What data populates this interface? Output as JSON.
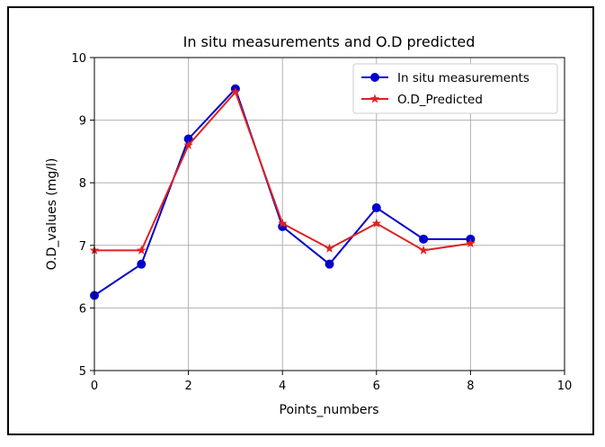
{
  "chart_data": {
    "type": "line",
    "title": "In situ measurements and O.D predicted",
    "xlabel": "Points_numbers",
    "ylabel": "O.D_values (mg/l)",
    "xlim": [
      0,
      10
    ],
    "ylim": [
      5,
      10
    ],
    "xticks": [
      0,
      2,
      4,
      6,
      8,
      10
    ],
    "yticks": [
      5,
      6,
      7,
      8,
      9,
      10
    ],
    "grid": true,
    "legend_position": "top-right",
    "x": [
      0,
      1,
      2,
      3,
      4,
      5,
      6,
      7,
      8
    ],
    "series": [
      {
        "name": "In situ measurements",
        "color": "#0000cc",
        "marker": "circle",
        "values": [
          6.2,
          6.7,
          8.7,
          9.5,
          7.3,
          6.7,
          7.6,
          7.1,
          7.1
        ]
      },
      {
        "name": "O.D_Predicted",
        "color": "#dd2222",
        "marker": "star",
        "values": [
          6.92,
          6.92,
          8.6,
          9.45,
          7.35,
          6.95,
          7.35,
          6.92,
          7.03
        ]
      }
    ]
  }
}
